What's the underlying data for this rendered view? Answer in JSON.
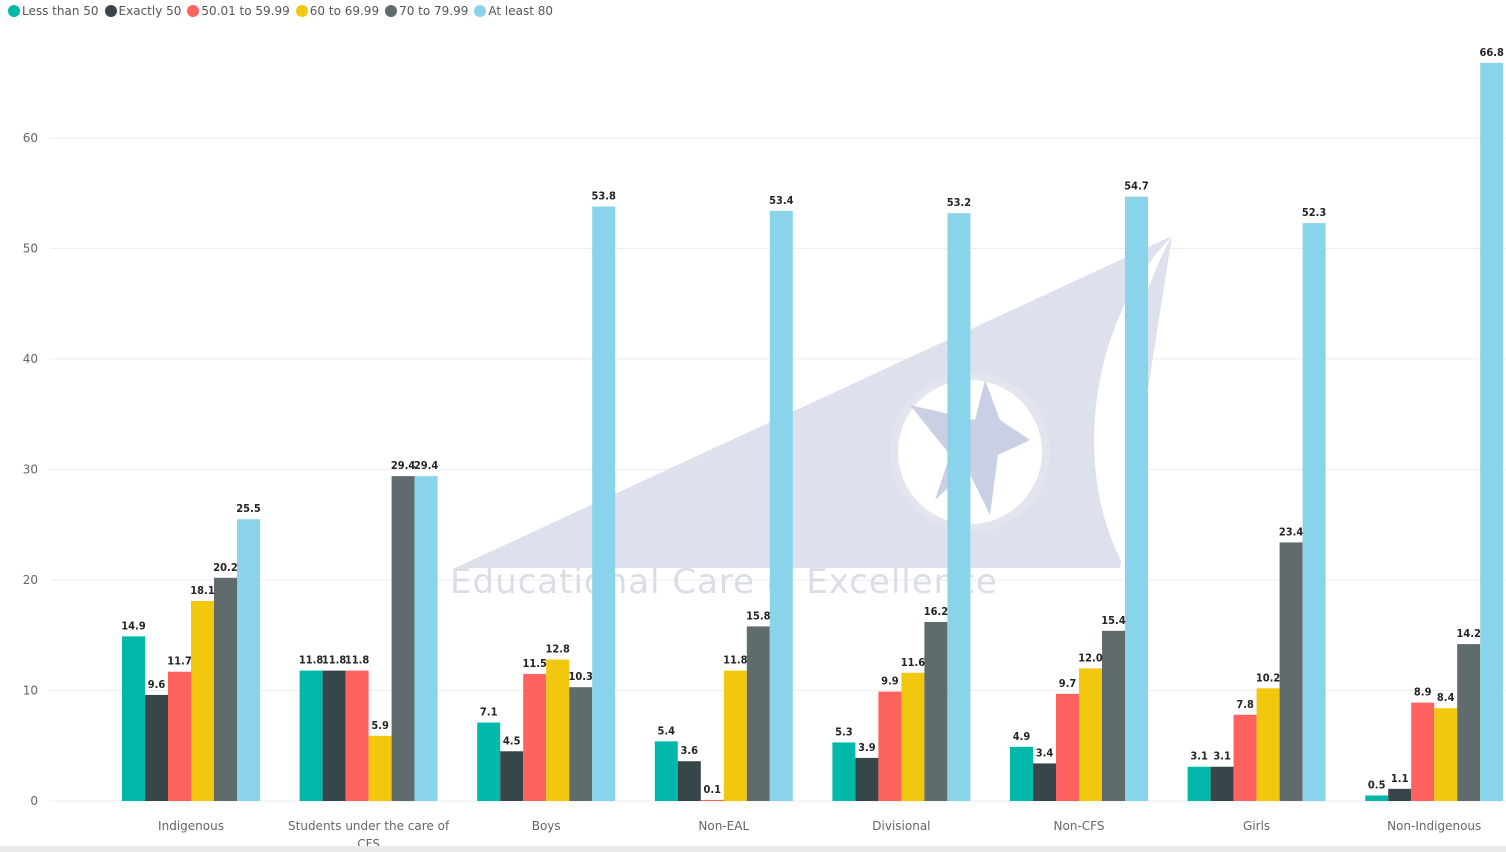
{
  "legend": [
    {
      "label": "Less than 50",
      "color": "#01B8AA"
    },
    {
      "label": "Exactly 50",
      "color": "#374649"
    },
    {
      "label": "50.01 to 59.99",
      "color": "#FD625E"
    },
    {
      "label": "60 to 69.99",
      "color": "#F2C80F"
    },
    {
      "label": "70 to 79.99",
      "color": "#5F6B6D"
    },
    {
      "label": "At least 80",
      "color": "#8AD4EB"
    }
  ],
  "watermark": {
    "text": "Educational Care & Excellence"
  },
  "chart_data": {
    "type": "bar",
    "title": "",
    "xlabel": "",
    "ylabel": "",
    "ylim": [
      0,
      70
    ],
    "yticks": [
      0,
      10,
      20,
      30,
      40,
      50,
      60
    ],
    "grid": true,
    "legend_position": "top-left",
    "categories": [
      [
        "Indigenous"
      ],
      [
        "Students under the care of",
        "CFS"
      ],
      [
        "Boys"
      ],
      [
        "Non-EAL"
      ],
      [
        "Divisional"
      ],
      [
        "Non-CFS"
      ],
      [
        "Girls"
      ],
      [
        "Non-Indigenous"
      ]
    ],
    "series": [
      {
        "name": "Less than 50",
        "values": [
          14.9,
          11.8,
          7.1,
          5.4,
          5.3,
          4.9,
          3.1,
          0.5
        ]
      },
      {
        "name": "Exactly 50",
        "values": [
          9.6,
          11.8,
          4.5,
          3.6,
          3.9,
          3.4,
          3.1,
          1.1
        ]
      },
      {
        "name": "50.01 to 59.99",
        "values": [
          11.7,
          11.8,
          11.5,
          0.1,
          9.9,
          9.7,
          7.8,
          8.9
        ]
      },
      {
        "name": "60 to 69.99",
        "values": [
          18.1,
          5.9,
          12.8,
          11.8,
          11.6,
          12.0,
          10.2,
          8.4
        ]
      },
      {
        "name": "70 to 79.99",
        "values": [
          20.2,
          29.4,
          10.3,
          15.8,
          16.2,
          15.4,
          23.4,
          14.2
        ]
      },
      {
        "name": "At least 80",
        "values": [
          25.5,
          29.4,
          53.8,
          53.4,
          53.2,
          54.7,
          52.3,
          66.8
        ]
      }
    ]
  }
}
